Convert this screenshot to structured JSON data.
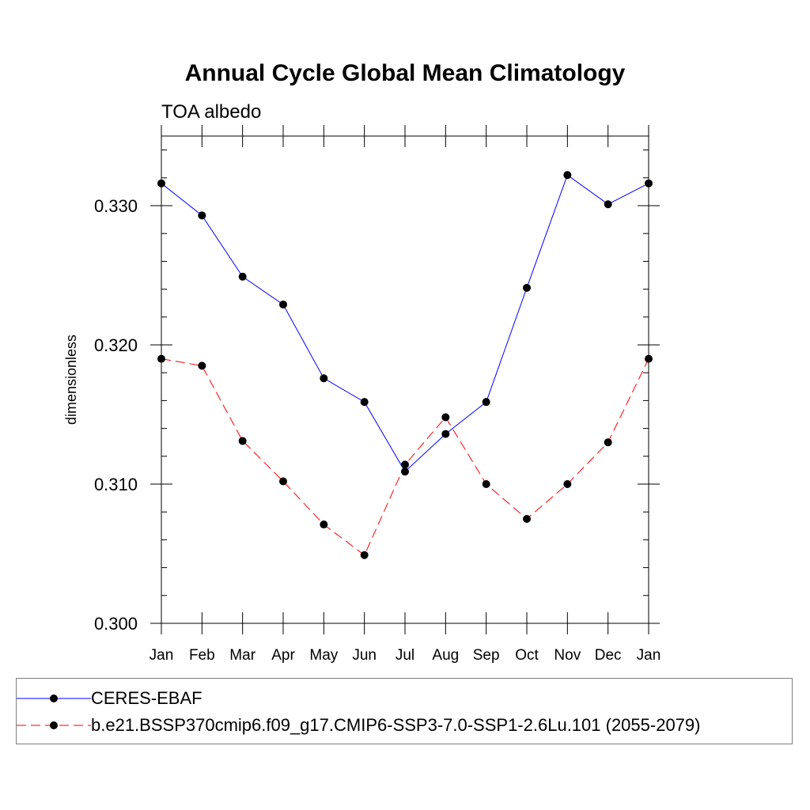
{
  "chart_data": {
    "type": "line",
    "title": "Annual Cycle Global Mean Climatology",
    "subtitle": "TOA albedo",
    "ylabel": "dimensionless",
    "xlabel": "",
    "categories": [
      "Jan",
      "Feb",
      "Mar",
      "Apr",
      "May",
      "Jun",
      "Jul",
      "Aug",
      "Sep",
      "Oct",
      "Nov",
      "Dec",
      "Jan"
    ],
    "ylim": [
      0.3,
      0.335
    ],
    "yticks": [
      0.3,
      0.31,
      0.32,
      0.33
    ],
    "ytick_labels": [
      "0.300",
      "0.310",
      "0.320",
      "0.330"
    ],
    "grid": false,
    "legend_position": "bottom",
    "series": [
      {
        "name": "CERES-EBAF",
        "color": "#0000ff",
        "dash": "solid",
        "marker": "filled-circle",
        "values": [
          0.3316,
          0.3293,
          0.3249,
          0.3229,
          0.3176,
          0.3159,
          0.3109,
          0.3136,
          0.3159,
          0.3241,
          0.3322,
          0.3301,
          0.3316
        ]
      },
      {
        "name": "b.e21.BSSP370cmip6.f09_g17.CMIP6-SSP3-7.0-SSP1-2.6Lu.101 (2055-2079)",
        "color": "#ff0000",
        "dash": "dashed",
        "marker": "filled-circle",
        "values": [
          0.319,
          0.3185,
          0.3131,
          0.3102,
          0.3071,
          0.3049,
          0.3114,
          0.3148,
          0.31,
          0.3075,
          0.31,
          0.313,
          0.319
        ]
      }
    ]
  }
}
